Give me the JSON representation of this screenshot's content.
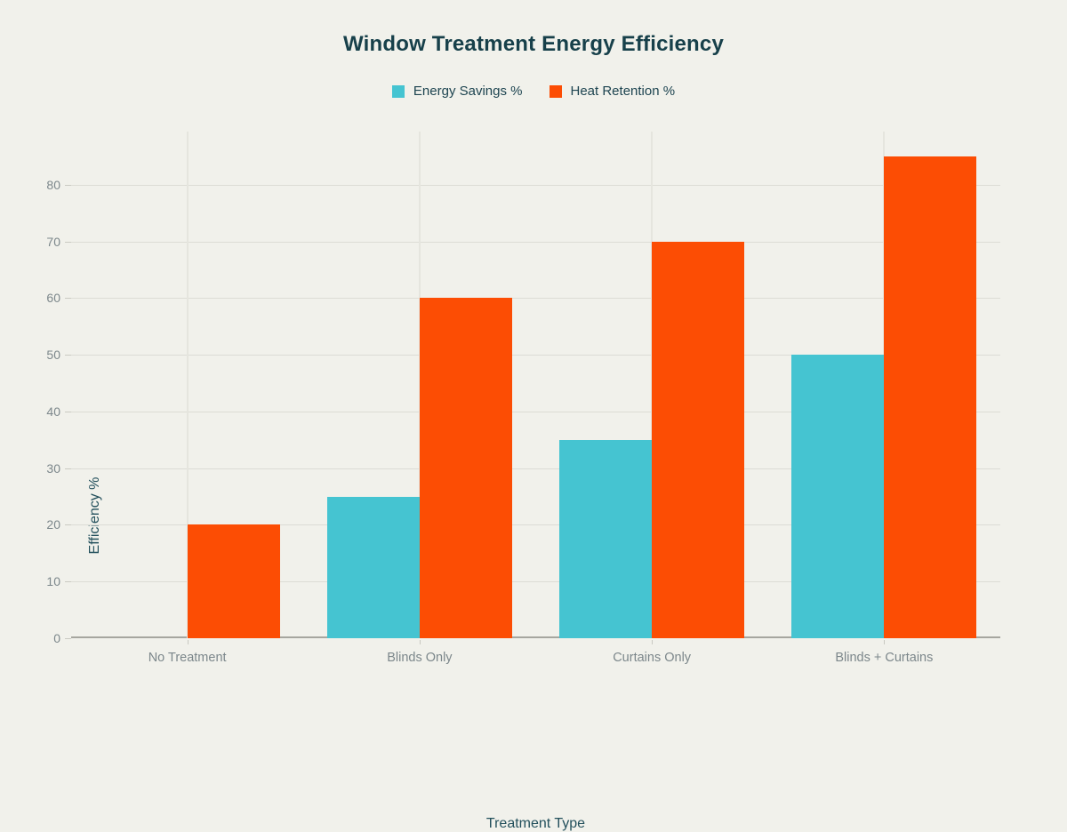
{
  "chart_data": {
    "type": "bar",
    "title": "Window Treatment Energy Efficiency",
    "xlabel": "Treatment Type",
    "ylabel": "Efficiency %",
    "categories": [
      "No Treatment",
      "Blinds Only",
      "Curtains Only",
      "Blinds + Curtains"
    ],
    "series": [
      {
        "name": "Energy Savings %",
        "color": "#45c4d1",
        "values": [
          0,
          25,
          35,
          50
        ]
      },
      {
        "name": "Heat Retention %",
        "color": "#fc4d04",
        "values": [
          20,
          60,
          70,
          85
        ]
      }
    ],
    "yticks": [
      0,
      10,
      20,
      30,
      40,
      50,
      60,
      70,
      80
    ],
    "ylim": [
      0,
      89.4
    ],
    "grid": true,
    "legend_position": "top-center"
  },
  "colors": {
    "background": "#f1f1eb",
    "title_text": "#17404a",
    "legend_text": "#1d4450",
    "axis_title_text": "#23505c",
    "tick_text": "#7c878b",
    "gridline": "#dcdcd5",
    "gridline_vertical": "#e5e5de",
    "axis_line": "#a6a69f",
    "tick_dash": "#c9c9c2"
  }
}
